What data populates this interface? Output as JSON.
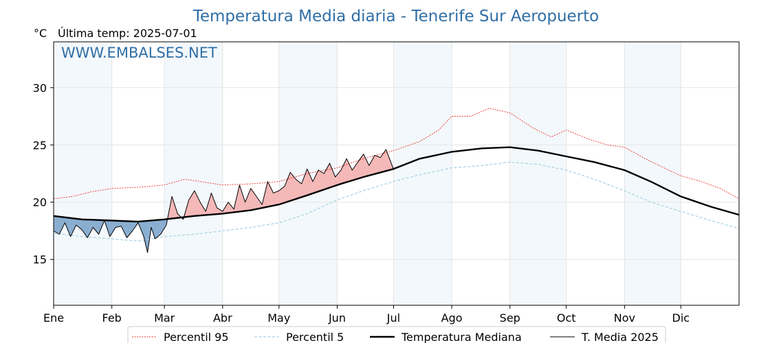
{
  "chart_data": {
    "type": "line",
    "title": "Temperatura Media diaria - Tenerife Sur Aeropuerto",
    "unit": "°C",
    "last_temp_label": "Última temp: 2025-07-01",
    "watermark": "WWW.EMBALSES.NET",
    "ylim": [
      11,
      34
    ],
    "yticks": [
      15,
      20,
      25,
      30
    ],
    "x_domain_days": [
      0,
      365
    ],
    "months": [
      {
        "label": "Ene",
        "day": 0
      },
      {
        "label": "Feb",
        "day": 31
      },
      {
        "label": "Mar",
        "day": 59
      },
      {
        "label": "Abr",
        "day": 90
      },
      {
        "label": "May",
        "day": 120
      },
      {
        "label": "Jun",
        "day": 151
      },
      {
        "label": "Jul",
        "day": 181
      },
      {
        "label": "Ago",
        "day": 212
      },
      {
        "label": "Sep",
        "day": 243
      },
      {
        "label": "Oct",
        "day": 273
      },
      {
        "label": "Nov",
        "day": 304
      },
      {
        "label": "Dic",
        "day": 334
      }
    ],
    "grid": true,
    "legend_position": "bottom",
    "series": [
      {
        "name": "Percentil 95",
        "style": "dotted",
        "color": "#e8312a",
        "x": [
          0,
          10,
          20,
          31,
          45,
          59,
          70,
          90,
          105,
          120,
          135,
          151,
          165,
          181,
          195,
          205,
          212,
          222,
          232,
          243,
          255,
          265,
          273,
          285,
          295,
          304,
          315,
          325,
          334,
          345,
          355,
          365
        ],
        "y": [
          20.3,
          20.5,
          20.9,
          21.2,
          21.3,
          21.5,
          22.0,
          21.5,
          21.6,
          21.8,
          22.5,
          23.0,
          23.8,
          24.5,
          25.3,
          26.3,
          27.5,
          27.5,
          28.2,
          27.8,
          26.5,
          25.7,
          26.3,
          25.5,
          25.0,
          24.8,
          23.8,
          23.0,
          22.3,
          21.8,
          21.2,
          20.3
        ]
      },
      {
        "name": "Percentil 5",
        "style": "dashed",
        "color": "#a9d4e5",
        "x": [
          0,
          15,
          31,
          45,
          59,
          75,
          90,
          105,
          120,
          135,
          151,
          165,
          181,
          195,
          212,
          228,
          243,
          258,
          273,
          288,
          304,
          318,
          334,
          350,
          365
        ],
        "y": [
          17.3,
          17.0,
          16.8,
          16.6,
          17.0,
          17.2,
          17.5,
          17.8,
          18.2,
          19.0,
          20.2,
          21.0,
          21.8,
          22.4,
          23.0,
          23.2,
          23.5,
          23.3,
          22.8,
          22.0,
          21.0,
          20.0,
          19.2,
          18.4,
          17.7
        ]
      },
      {
        "name": "Temperatura Mediana",
        "style": "solid-bold",
        "color": "#000000",
        "x": [
          0,
          15,
          31,
          45,
          59,
          75,
          90,
          105,
          120,
          135,
          151,
          165,
          181,
          195,
          212,
          228,
          243,
          258,
          273,
          288,
          304,
          318,
          334,
          350,
          365
        ],
        "y": [
          18.8,
          18.5,
          18.4,
          18.3,
          18.5,
          18.8,
          19.0,
          19.3,
          19.8,
          20.6,
          21.5,
          22.2,
          22.9,
          23.8,
          24.4,
          24.7,
          24.8,
          24.5,
          24.0,
          23.5,
          22.8,
          21.8,
          20.5,
          19.6,
          18.9
        ]
      },
      {
        "name": "T. Media 2025",
        "style": "solid",
        "color": "#000000",
        "x": [
          0,
          3,
          6,
          9,
          12,
          15,
          18,
          21,
          24,
          27,
          30,
          33,
          36,
          39,
          42,
          45,
          48,
          50,
          52,
          54,
          57,
          60,
          63,
          66,
          69,
          72,
          75,
          78,
          81,
          84,
          87,
          90,
          93,
          96,
          99,
          102,
          105,
          108,
          111,
          114,
          117,
          120,
          123,
          126,
          129,
          132,
          135,
          138,
          141,
          144,
          147,
          150,
          153,
          156,
          159,
          162,
          165,
          168,
          171,
          174,
          177,
          180,
          181
        ],
        "y": [
          17.5,
          17.2,
          18.2,
          17.0,
          18.0,
          17.6,
          16.9,
          17.8,
          17.2,
          18.4,
          17.0,
          17.8,
          17.9,
          16.9,
          17.5,
          18.2,
          17.0,
          15.6,
          17.8,
          16.8,
          17.2,
          18.0,
          20.5,
          19.0,
          18.5,
          20.2,
          21.0,
          20.0,
          19.2,
          20.8,
          19.5,
          19.2,
          20.0,
          19.4,
          21.5,
          20.0,
          21.2,
          20.5,
          19.8,
          21.8,
          20.8,
          21.0,
          21.4,
          22.6,
          22.0,
          21.6,
          22.9,
          21.8,
          22.8,
          22.5,
          23.4,
          22.2,
          22.8,
          23.8,
          22.8,
          23.5,
          24.2,
          23.2,
          24.1,
          23.9,
          24.6,
          23.3,
          22.9
        ]
      }
    ]
  }
}
